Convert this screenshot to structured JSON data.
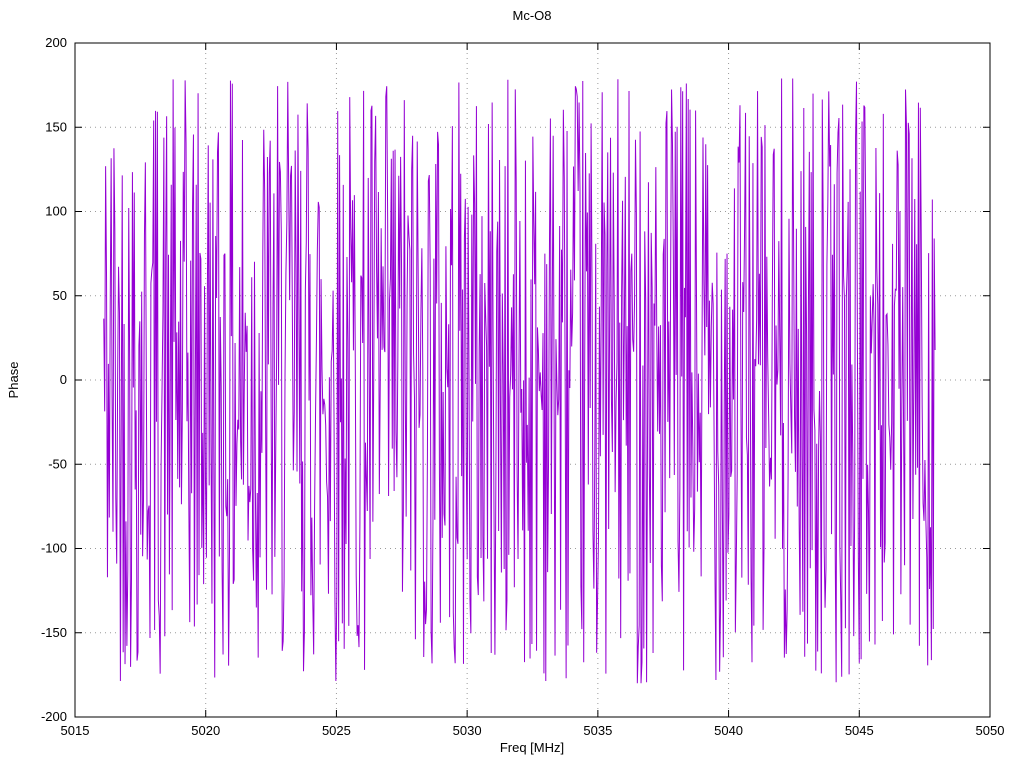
{
  "page": {
    "background": "#ffffff"
  },
  "chart_data": {
    "type": "line",
    "title": "Mc-O8",
    "xlabel": "Freq [MHz]",
    "ylabel": "Phase",
    "xlim": [
      5015,
      5050
    ],
    "ylim": [
      -200,
      200
    ],
    "x_ticks": [
      5015,
      5020,
      5025,
      5030,
      5035,
      5040,
      5045,
      5050
    ],
    "y_ticks": [
      -200,
      -150,
      -100,
      -50,
      0,
      50,
      100,
      150,
      200
    ],
    "grid": true,
    "grid_style": "dotted",
    "grid_color": "#9a9a9a",
    "border_color": "#000000",
    "legend": "none",
    "line_color": "#9400D3",
    "description": "Dense wrapped-phase noise: phase values appear uniformly distributed between about -180 and +180 degrees across the measured band, producing a solid band of vertical purple strokes.",
    "series": [
      {
        "name": "phase",
        "x_start": 5016.1,
        "x_end": 5047.9,
        "n_points": 900,
        "y_min": -180,
        "y_max": 180,
        "distribution": "uniform-random-wrapped-phase",
        "seed": 42
      }
    ]
  }
}
